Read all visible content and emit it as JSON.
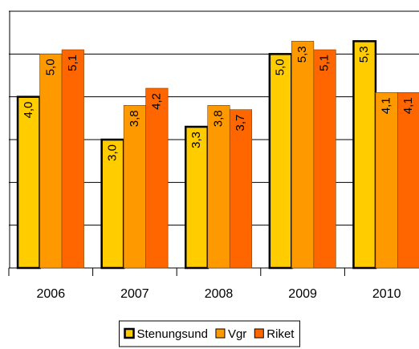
{
  "chart_data": {
    "type": "bar",
    "categories": [
      "2006",
      "2007",
      "2008",
      "2009",
      "2010"
    ],
    "series": [
      {
        "name": "Stenungsund",
        "color": "#ffcc00",
        "values": [
          4.0,
          3.0,
          3.3,
          5.0,
          5.3
        ],
        "value_labels": [
          "4,0",
          "3,0",
          "3,3",
          "5,0",
          "5,3"
        ]
      },
      {
        "name": "Vgr",
        "color": "#ff9900",
        "values": [
          5.0,
          3.8,
          3.8,
          5.3,
          4.1
        ],
        "value_labels": [
          "5,0",
          "3,8",
          "3,8",
          "5,3",
          "4,1"
        ]
      },
      {
        "name": "Riket",
        "color": "#ff6600",
        "values": [
          5.1,
          4.2,
          3.7,
          5.1,
          4.1
        ],
        "value_labels": [
          "5,1",
          "4,2",
          "3,7",
          "5,1",
          "4,1"
        ]
      }
    ],
    "ylim": [
      0,
      6
    ],
    "yticks": [
      0,
      1,
      2,
      3,
      4,
      5,
      6
    ],
    "grid": true,
    "legend": "bottom"
  }
}
